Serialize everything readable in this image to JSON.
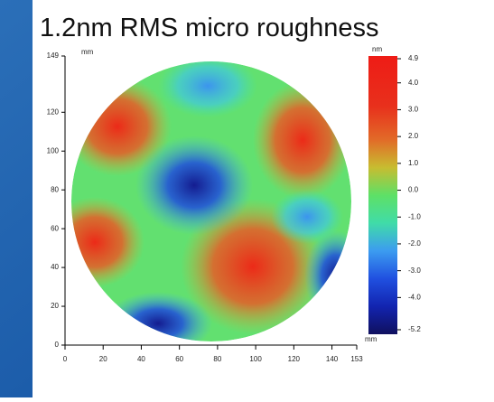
{
  "chart_data": {
    "type": "heatmap",
    "title": "1.2nm RMS micro roughness",
    "xlabel": "mm",
    "ylabel": "mm",
    "colorbar_label": "nm",
    "xlim": [
      0,
      153
    ],
    "xticks": [
      0,
      20,
      40,
      60,
      80,
      100,
      120,
      140,
      153
    ],
    "ylim": [
      0,
      149
    ],
    "yticks": [
      0,
      20,
      40,
      60,
      80,
      100,
      120,
      149
    ],
    "clim": [
      -5.2,
      4.9
    ],
    "cticks": [
      4.9,
      {
        "value": 4,
        "label": "4.0"
      },
      {
        "value": 3,
        "label": "3.0"
      },
      {
        "value": 2,
        "label": "2.0"
      },
      {
        "value": 1,
        "label": "1.0"
      },
      {
        "value": 0,
        "label": "0.0"
      },
      {
        "value": -1,
        "label": "-1.0"
      },
      {
        "value": -2,
        "label": "-2.0"
      },
      {
        "value": -3,
        "label": "-3.0"
      },
      {
        "value": -4,
        "label": "-4.0"
      },
      -5.2
    ]
  }
}
